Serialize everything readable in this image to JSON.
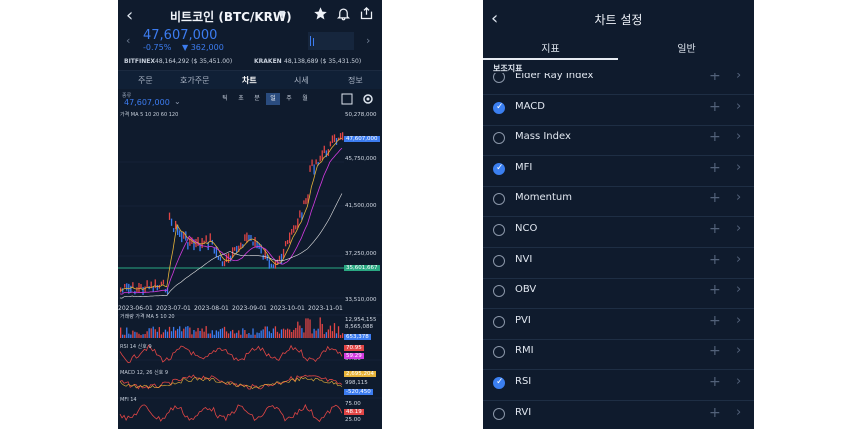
{
  "left": {
    "title": "비트코인 (BTC/KRW)",
    "price": "47,607,000",
    "change_pct": "-0.75%",
    "change_abs": "▼ 362,000",
    "exchanges": [
      {
        "name": "BITFINEX",
        "value": "48,164,292 ($ 35,451.00)"
      },
      {
        "name": "KRAKEN",
        "value": "48,138,689 ($ 35,431.50)"
      }
    ],
    "tabs": [
      "주문",
      "호가주문",
      "차트",
      "시세",
      "정보"
    ],
    "active_tab": "차트",
    "selector_label": "종류",
    "selector_price": "47,607,000",
    "timeframes": [
      "틱",
      "초",
      "분",
      "일",
      "주",
      "월"
    ],
    "active_timeframe": "일",
    "icons": [
      "back-icon",
      "star-icon",
      "bell-icon",
      "share-icon",
      "square-icon",
      "gear-icon"
    ],
    "chart_legend_main": "가격 MA  5  10  20  60  120",
    "y_labels": [
      "50,278,000",
      "45,750,000",
      "41,500,000",
      "37,250,000",
      "33,510,000"
    ],
    "price_tag": "47,607,000",
    "ma_tag": "35,601,667",
    "x_labels": [
      "2023-06-01",
      "2023-07-01",
      "2023-08-01",
      "2023-09-01",
      "2023-10-01",
      "2023-11-01"
    ],
    "volume_legend": "거래량 가격 MA  5  10  20",
    "volume_labels": [
      "12,954,155",
      "8,565,088",
      "653,378",
      "37.86"
    ],
    "rsi_legend": "RSI  14  신호  9",
    "rsi_labels": [
      "70.95",
      "59.29",
      "37.33"
    ],
    "macd_legend": "MACD  12, 26  신호  9",
    "macd_labels": [
      "2,695,204",
      "998,115",
      "-520,450"
    ],
    "mfi_legend": "MFI  14",
    "mfi_labels": [
      "75.00",
      "48.19",
      "25.00"
    ],
    "colors": {
      "up": "#e04545",
      "down": "#3c7cf0",
      "ma5": "#e6b33a",
      "ma10": "#d23be0",
      "ma20": "#f07a2a",
      "ma60": "#56c2f0",
      "ma120": "#e6e6e6",
      "bg": "#0f1b2d"
    }
  },
  "right": {
    "title": "차트 설정",
    "tabs": [
      "지표",
      "일반"
    ],
    "active_tab": "지표",
    "section": "보조지표",
    "items": [
      {
        "name": "Elder Ray Index",
        "checked": false
      },
      {
        "name": "MACD",
        "checked": true
      },
      {
        "name": "Mass Index",
        "checked": false
      },
      {
        "name": "MFI",
        "checked": true
      },
      {
        "name": "Momentum",
        "checked": false
      },
      {
        "name": "NCO",
        "checked": false
      },
      {
        "name": "NVI",
        "checked": false
      },
      {
        "name": "OBV",
        "checked": false
      },
      {
        "name": "PVI",
        "checked": false
      },
      {
        "name": "RMI",
        "checked": false
      },
      {
        "name": "RSI",
        "checked": true
      },
      {
        "name": "RVI",
        "checked": false
      }
    ]
  }
}
